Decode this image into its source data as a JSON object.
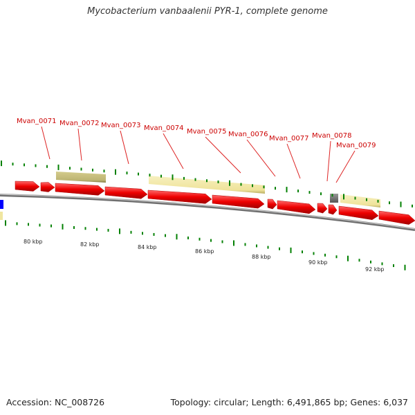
{
  "title": "Mycobacterium vanbaalenii PYR-1, complete genome",
  "footer": {
    "accession": "Accession: NC_008726",
    "summary": "Topology: circular; Length: 6,491,865 bp; Genes: 6,037"
  },
  "colors": {
    "backbone": "#808080",
    "cds": "#ff0000",
    "misc_feature_light": "#f0e6a0",
    "misc_feature_dark": "#bdb76b",
    "gene_box": "#707070",
    "blue_feature": "#0000ff",
    "tick": "#008000",
    "label": "#cc0000"
  },
  "gene_labels": [
    "Mvan_0071",
    "Mvan_0072",
    "Mvan_0073",
    "Mvan_0074",
    "Mvan_0075",
    "Mvan_0076",
    "Mvan_0077",
    "Mvan_0078",
    "Mvan_0079"
  ],
  "scale_labels": [
    "80 kbp",
    "82 kbp",
    "84 kbp",
    "86 kbp",
    "88 kbp",
    "90 kbp",
    "92 kbp"
  ]
}
